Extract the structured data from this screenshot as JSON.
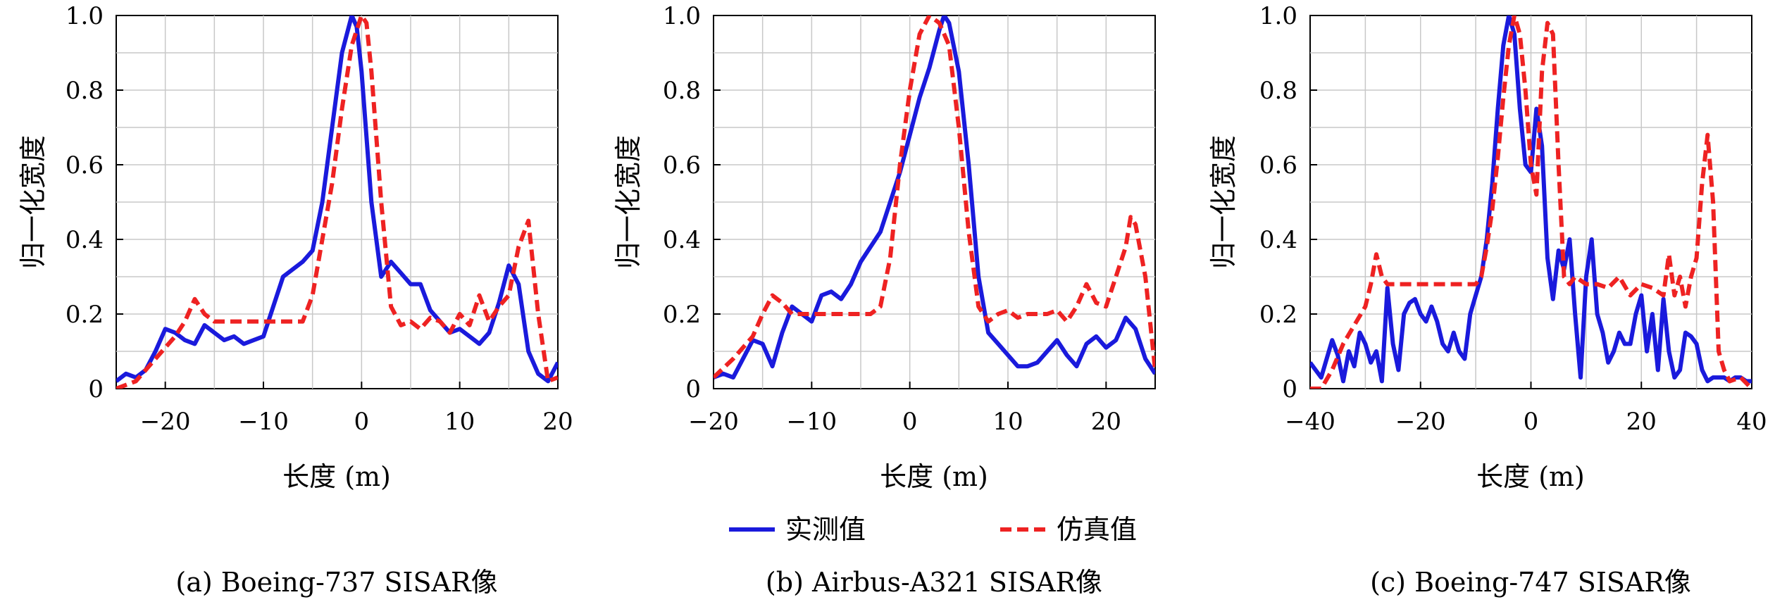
{
  "legend": {
    "measured": {
      "label": "实测值",
      "color": "#1a1adc"
    },
    "simulated": {
      "label": "仿真值",
      "color": "#ee2222"
    }
  },
  "chart_data": [
    {
      "type": "line",
      "caption": "(a) Boeing-737 SISAR像",
      "xlabel": "长度 (m)",
      "ylabel": "归一化宽度",
      "xlim": [
        -25,
        20
      ],
      "ylim": [
        0,
        1.0
      ],
      "xticks": [
        -20,
        -10,
        0,
        10,
        20
      ],
      "xtick_labels": [
        "−20",
        "−10",
        "0",
        "10",
        "20"
      ],
      "yticks": [
        0,
        0.2,
        0.4,
        0.6,
        0.8,
        1.0
      ],
      "ytick_labels": [
        "0",
        "0.2",
        "0.4",
        "0.6",
        "0.8",
        "1.0"
      ],
      "grid": true,
      "series": [
        {
          "name": "实测值",
          "style": "solid",
          "color": "#1a1adc",
          "x": [
            -25,
            -24,
            -23,
            -22,
            -21,
            -20,
            -19,
            -18,
            -17,
            -16,
            -15,
            -14,
            -13,
            -12,
            -11,
            -10,
            -9,
            -8,
            -7,
            -6,
            -5,
            -4,
            -3,
            -2,
            -1,
            -0.5,
            0,
            1,
            2,
            3,
            4,
            5,
            6,
            7,
            8,
            9,
            10,
            11,
            12,
            13,
            14,
            15,
            16,
            17,
            18,
            19,
            20
          ],
          "y": [
            0.02,
            0.04,
            0.03,
            0.05,
            0.1,
            0.16,
            0.15,
            0.13,
            0.12,
            0.17,
            0.15,
            0.13,
            0.14,
            0.12,
            0.13,
            0.14,
            0.22,
            0.3,
            0.32,
            0.34,
            0.37,
            0.5,
            0.7,
            0.9,
            1.0,
            0.97,
            0.85,
            0.5,
            0.3,
            0.34,
            0.31,
            0.28,
            0.28,
            0.21,
            0.18,
            0.15,
            0.16,
            0.14,
            0.12,
            0.15,
            0.23,
            0.33,
            0.28,
            0.1,
            0.04,
            0.02,
            0.07
          ]
        },
        {
          "name": "仿真值",
          "style": "dashed",
          "color": "#ee2222",
          "x": [
            -25,
            -23,
            -21,
            -19,
            -18,
            -17,
            -16,
            -15,
            -14,
            -12,
            -10,
            -8,
            -6,
            -5,
            -4,
            -3,
            -2,
            -1,
            0,
            0.5,
            1,
            2,
            3,
            4,
            5,
            6,
            7,
            8,
            9,
            10,
            11,
            12,
            13,
            14,
            15,
            16,
            17,
            18,
            19,
            20
          ],
          "y": [
            0.0,
            0.02,
            0.08,
            0.14,
            0.18,
            0.24,
            0.2,
            0.18,
            0.18,
            0.18,
            0.18,
            0.18,
            0.18,
            0.25,
            0.4,
            0.55,
            0.75,
            0.92,
            1.0,
            0.98,
            0.85,
            0.5,
            0.22,
            0.17,
            0.18,
            0.16,
            0.19,
            0.18,
            0.15,
            0.2,
            0.17,
            0.25,
            0.18,
            0.22,
            0.25,
            0.38,
            0.45,
            0.2,
            0.02,
            0.03
          ]
        }
      ]
    },
    {
      "type": "line",
      "caption": "(b) Airbus-A321 SISAR像",
      "xlabel": "长度 (m)",
      "ylabel": "归一化宽度",
      "xlim": [
        -20,
        25
      ],
      "ylim": [
        0,
        1.0
      ],
      "xticks": [
        -20,
        -10,
        0,
        10,
        20
      ],
      "xtick_labels": [
        "−20",
        "−10",
        "0",
        "10",
        "20"
      ],
      "yticks": [
        0,
        0.2,
        0.4,
        0.6,
        0.8,
        1.0
      ],
      "ytick_labels": [
        "0",
        "0.2",
        "0.4",
        "0.6",
        "0.8",
        "1.0"
      ],
      "grid": true,
      "series": [
        {
          "name": "实测值",
          "style": "solid",
          "color": "#1a1adc",
          "x": [
            -20,
            -19,
            -18,
            -17,
            -16,
            -15,
            -14,
            -13,
            -12,
            -11,
            -10,
            -9,
            -8,
            -7,
            -6,
            -5,
            -4,
            -3,
            -2,
            -1,
            0,
            1,
            2,
            3,
            3.5,
            4,
            5,
            6,
            7,
            8,
            9,
            10,
            11,
            12,
            13,
            14,
            15,
            16,
            17,
            18,
            19,
            20,
            21,
            22,
            23,
            24,
            25
          ],
          "y": [
            0.03,
            0.04,
            0.03,
            0.08,
            0.13,
            0.12,
            0.06,
            0.15,
            0.22,
            0.2,
            0.18,
            0.25,
            0.26,
            0.24,
            0.28,
            0.34,
            0.38,
            0.42,
            0.5,
            0.58,
            0.68,
            0.78,
            0.86,
            0.96,
            1.0,
            0.98,
            0.85,
            0.6,
            0.3,
            0.15,
            0.12,
            0.09,
            0.06,
            0.06,
            0.07,
            0.1,
            0.13,
            0.09,
            0.06,
            0.12,
            0.14,
            0.11,
            0.13,
            0.19,
            0.16,
            0.08,
            0.04
          ]
        },
        {
          "name": "仿真值",
          "style": "dashed",
          "color": "#ee2222",
          "x": [
            -20,
            -18,
            -16,
            -15,
            -14,
            -13,
            -12,
            -10,
            -8,
            -6,
            -4,
            -3,
            -2,
            -1,
            0,
            1,
            2,
            3,
            4,
            5,
            6,
            7,
            8,
            9,
            10,
            11,
            12,
            13,
            14,
            15,
            16,
            17,
            18,
            19,
            20,
            21,
            22,
            22.5,
            23,
            24,
            25
          ],
          "y": [
            0.03,
            0.08,
            0.14,
            0.2,
            0.25,
            0.23,
            0.2,
            0.2,
            0.2,
            0.2,
            0.2,
            0.22,
            0.35,
            0.6,
            0.8,
            0.95,
            1.0,
            0.98,
            0.92,
            0.7,
            0.42,
            0.22,
            0.18,
            0.2,
            0.21,
            0.19,
            0.2,
            0.2,
            0.2,
            0.21,
            0.18,
            0.22,
            0.28,
            0.23,
            0.22,
            0.3,
            0.38,
            0.46,
            0.44,
            0.3,
            0.05
          ]
        }
      ]
    },
    {
      "type": "line",
      "caption": "(c) Boeing-747 SISAR像",
      "xlabel": "长度 (m)",
      "ylabel": "归一化宽度",
      "xlim": [
        -40,
        40
      ],
      "ylim": [
        0,
        1.0
      ],
      "xticks": [
        -40,
        -20,
        0,
        20,
        40
      ],
      "xtick_labels": [
        "−40",
        "−20",
        "0",
        "20",
        "40"
      ],
      "yticks": [
        0,
        0.2,
        0.4,
        0.6,
        0.8,
        1.0
      ],
      "ytick_labels": [
        "0",
        "0.2",
        "0.4",
        "0.6",
        "0.8",
        "1.0"
      ],
      "grid": true,
      "series": [
        {
          "name": "实测值",
          "style": "solid",
          "color": "#1a1adc",
          "x": [
            -40,
            -38,
            -36,
            -35,
            -34,
            -33,
            -32,
            -31,
            -30,
            -29,
            -28,
            -27,
            -26,
            -25,
            -24,
            -23,
            -22,
            -21,
            -20,
            -19,
            -18,
            -17,
            -16,
            -15,
            -14,
            -13,
            -12,
            -11,
            -10,
            -9,
            -8,
            -7,
            -6,
            -5,
            -4,
            -3,
            -2,
            -1,
            0,
            1,
            2,
            3,
            4,
            5,
            6,
            7,
            8,
            9,
            10,
            11,
            12,
            13,
            14,
            15,
            16,
            17,
            18,
            19,
            20,
            21,
            22,
            23,
            24,
            25,
            26,
            27,
            28,
            29,
            30,
            31,
            32,
            33,
            34,
            35,
            36,
            37,
            38,
            39,
            40
          ],
          "y": [
            0.07,
            0.03,
            0.13,
            0.09,
            0.02,
            0.1,
            0.06,
            0.15,
            0.12,
            0.07,
            0.1,
            0.02,
            0.27,
            0.12,
            0.05,
            0.2,
            0.23,
            0.24,
            0.2,
            0.18,
            0.22,
            0.18,
            0.12,
            0.1,
            0.15,
            0.1,
            0.08,
            0.2,
            0.25,
            0.3,
            0.4,
            0.55,
            0.75,
            0.92,
            1.0,
            0.95,
            0.75,
            0.6,
            0.58,
            0.75,
            0.65,
            0.35,
            0.24,
            0.37,
            0.32,
            0.4,
            0.2,
            0.03,
            0.3,
            0.4,
            0.2,
            0.15,
            0.07,
            0.1,
            0.15,
            0.12,
            0.12,
            0.2,
            0.25,
            0.1,
            0.2,
            0.05,
            0.24,
            0.1,
            0.03,
            0.05,
            0.15,
            0.14,
            0.12,
            0.05,
            0.02,
            0.03,
            0.03,
            0.03,
            0.02,
            0.03,
            0.03,
            0.02,
            0.02
          ]
        },
        {
          "name": "仿真值",
          "style": "dashed",
          "color": "#ee2222",
          "x": [
            -40,
            -38,
            -36,
            -34,
            -32,
            -30,
            -29,
            -28,
            -27,
            -26,
            -24,
            -22,
            -20,
            -18,
            -16,
            -14,
            -12,
            -10,
            -9,
            -8,
            -7,
            -6,
            -5,
            -4,
            -3,
            -2,
            -1,
            0,
            1,
            2,
            3,
            4,
            5,
            6,
            7,
            8,
            10,
            12,
            14,
            16,
            18,
            20,
            22,
            24,
            25,
            26,
            27,
            28,
            29,
            30,
            31,
            32,
            33,
            34,
            35,
            36,
            38,
            40
          ],
          "y": [
            0.0,
            0.0,
            0.05,
            0.12,
            0.17,
            0.22,
            0.28,
            0.36,
            0.3,
            0.28,
            0.28,
            0.28,
            0.28,
            0.28,
            0.28,
            0.28,
            0.28,
            0.28,
            0.3,
            0.38,
            0.48,
            0.62,
            0.78,
            0.92,
            1.0,
            0.95,
            0.8,
            0.6,
            0.52,
            0.85,
            0.98,
            0.95,
            0.6,
            0.3,
            0.28,
            0.3,
            0.28,
            0.28,
            0.27,
            0.3,
            0.25,
            0.28,
            0.27,
            0.25,
            0.36,
            0.25,
            0.3,
            0.22,
            0.3,
            0.35,
            0.55,
            0.68,
            0.5,
            0.1,
            0.05,
            0.02,
            0.03,
            0.0
          ]
        }
      ]
    }
  ]
}
